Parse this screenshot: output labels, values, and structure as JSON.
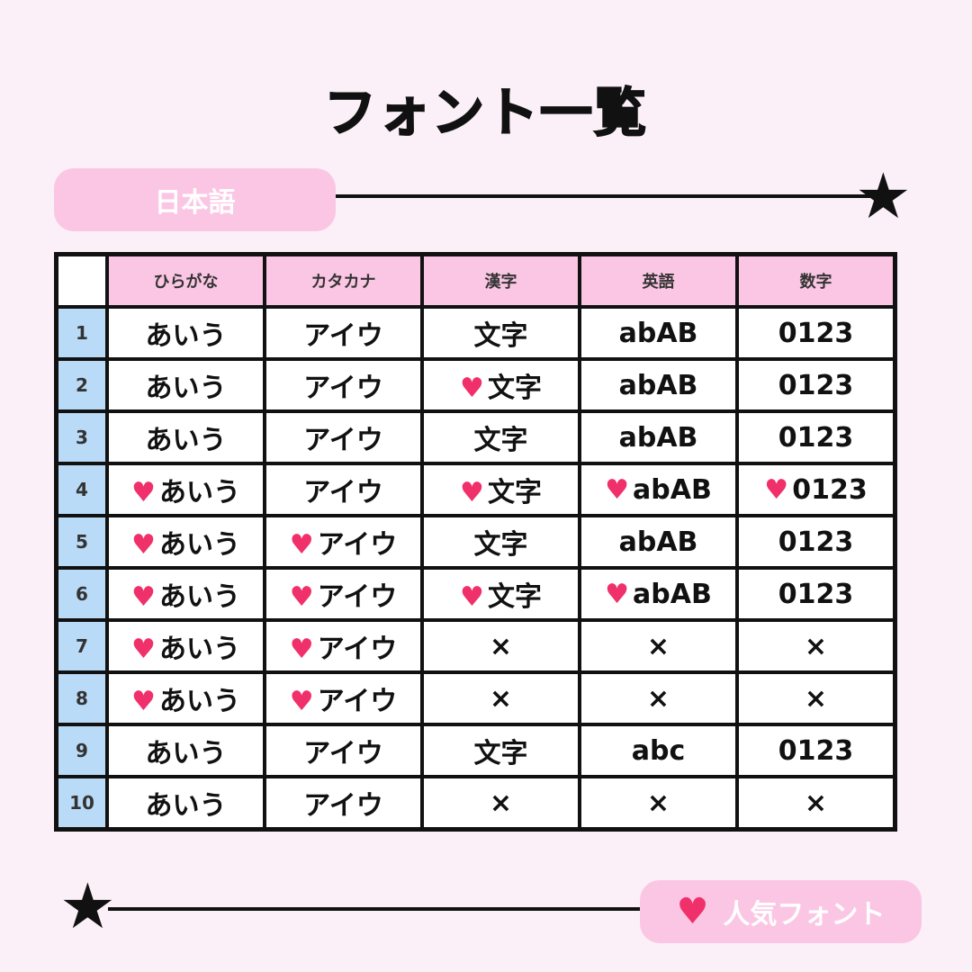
{
  "title": "フォント一覧",
  "section_label": "日本語",
  "legend": {
    "icon": "heart-icon",
    "label": "人気フォント"
  },
  "colors": {
    "background": "#fcf0f8",
    "pink": "#fbc6e4",
    "blue": "#b9dbf7",
    "heart": "#f0306a"
  },
  "table": {
    "headers": [
      "ひらがな",
      "カタカナ",
      "漢字",
      "英語",
      "数字"
    ],
    "rows": [
      {
        "num": "1",
        "cells": [
          {
            "text": "あいう",
            "heart": false
          },
          {
            "text": "アイウ",
            "heart": false
          },
          {
            "text": "文字",
            "heart": false
          },
          {
            "text": "abAB",
            "heart": false
          },
          {
            "text": "0123",
            "heart": false
          }
        ]
      },
      {
        "num": "2",
        "cells": [
          {
            "text": "あいう",
            "heart": false
          },
          {
            "text": "アイウ",
            "heart": false
          },
          {
            "text": "文字",
            "heart": true
          },
          {
            "text": "abAB",
            "heart": false
          },
          {
            "text": "0123",
            "heart": false
          }
        ]
      },
      {
        "num": "3",
        "cells": [
          {
            "text": "あいう",
            "heart": false
          },
          {
            "text": "アイウ",
            "heart": false
          },
          {
            "text": "文字",
            "heart": false
          },
          {
            "text": "abAB",
            "heart": false
          },
          {
            "text": "0123",
            "heart": false
          }
        ]
      },
      {
        "num": "4",
        "cells": [
          {
            "text": "あいう",
            "heart": true
          },
          {
            "text": "アイウ",
            "heart": false
          },
          {
            "text": "文字",
            "heart": true
          },
          {
            "text": "abAB",
            "heart": true
          },
          {
            "text": "0123",
            "heart": true
          }
        ]
      },
      {
        "num": "5",
        "cells": [
          {
            "text": "あいう",
            "heart": true
          },
          {
            "text": "アイウ",
            "heart": true
          },
          {
            "text": "文字",
            "heart": false
          },
          {
            "text": "abAB",
            "heart": false
          },
          {
            "text": "0123",
            "heart": false
          }
        ]
      },
      {
        "num": "6",
        "cells": [
          {
            "text": "あいう",
            "heart": true
          },
          {
            "text": "アイウ",
            "heart": true
          },
          {
            "text": "文字",
            "heart": true
          },
          {
            "text": "abAB",
            "heart": true
          },
          {
            "text": "0123",
            "heart": false
          }
        ]
      },
      {
        "num": "7",
        "cells": [
          {
            "text": "あいう",
            "heart": true
          },
          {
            "text": "アイウ",
            "heart": true
          },
          {
            "text": "×",
            "heart": false
          },
          {
            "text": "×",
            "heart": false
          },
          {
            "text": "×",
            "heart": false
          }
        ]
      },
      {
        "num": "8",
        "cells": [
          {
            "text": "あいう",
            "heart": true
          },
          {
            "text": "アイウ",
            "heart": true
          },
          {
            "text": "×",
            "heart": false
          },
          {
            "text": "×",
            "heart": false
          },
          {
            "text": "×",
            "heart": false
          }
        ]
      },
      {
        "num": "9",
        "cells": [
          {
            "text": "あいう",
            "heart": false
          },
          {
            "text": "アイウ",
            "heart": false
          },
          {
            "text": "文字",
            "heart": false
          },
          {
            "text": "abc",
            "heart": false
          },
          {
            "text": "0123",
            "heart": false
          }
        ]
      },
      {
        "num": "10",
        "cells": [
          {
            "text": "あいう",
            "heart": false
          },
          {
            "text": "アイウ",
            "heart": false
          },
          {
            "text": "×",
            "heart": false
          },
          {
            "text": "×",
            "heart": false
          },
          {
            "text": "×",
            "heart": false
          }
        ]
      }
    ]
  }
}
